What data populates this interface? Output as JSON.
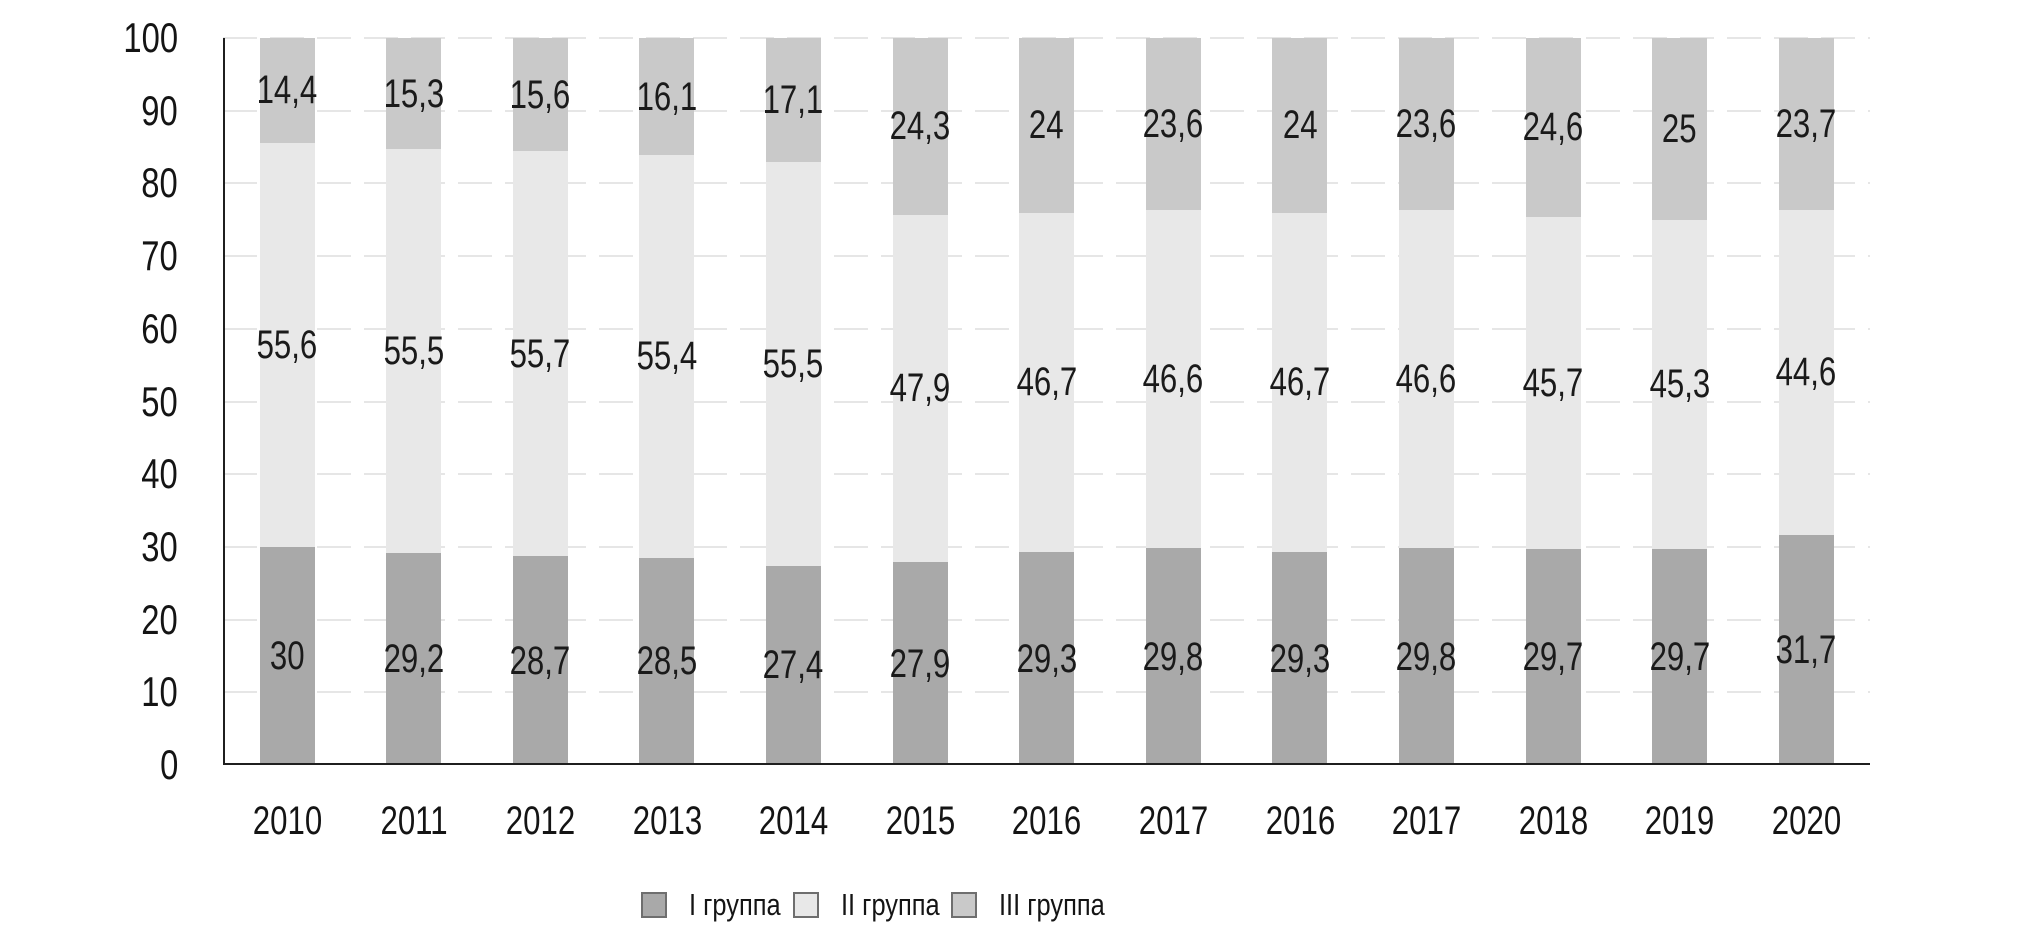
{
  "chart_data": {
    "type": "bar",
    "variant": "stacked-column",
    "title": "",
    "categories": [
      "2010",
      "2011",
      "2012",
      "2013",
      "2014",
      "2015",
      "2016",
      "2017",
      "2016",
      "2017",
      "2018",
      "2019",
      "2020"
    ],
    "series": [
      {
        "name": "I группа",
        "color": "#a9a9a9",
        "values": [
          30,
          29.2,
          28.7,
          28.5,
          27.4,
          27.9,
          29.3,
          29.8,
          29.3,
          29.8,
          29.7,
          29.7,
          31.7
        ],
        "labels": [
          "30",
          "29,2",
          "28,7",
          "28,5",
          "27,4",
          "27,9",
          "29,3",
          "29,8",
          "29,3",
          "29,8",
          "29,7",
          "29,7",
          "31,7"
        ]
      },
      {
        "name": "II группа",
        "color": "#e8e8e8",
        "values": [
          55.6,
          55.5,
          55.7,
          55.4,
          55.5,
          47.9,
          46.7,
          46.6,
          46.7,
          46.6,
          45.7,
          45.3,
          44.6
        ],
        "labels": [
          "55,6",
          "55,5",
          "55,7",
          "55,4",
          "55,5",
          "47,9",
          "46,7",
          "46,6",
          "46,7",
          "46,6",
          "45,7",
          "45,3",
          "44,6"
        ]
      },
      {
        "name": "III группа",
        "color": "#c9c9c9",
        "values": [
          14.4,
          15.3,
          15.6,
          16.1,
          17.1,
          24.3,
          24,
          23.6,
          24,
          23.6,
          24.6,
          25,
          23.7
        ],
        "labels": [
          "14,4",
          "15,3",
          "15,6",
          "16,1",
          "17,1",
          "24,3",
          "24",
          "23,6",
          "24",
          "23,6",
          "24,6",
          "25",
          "23,7"
        ]
      }
    ],
    "y_axis": {
      "min": 0,
      "max": 100,
      "tick_step": 10,
      "tick_labels": [
        "0",
        "10",
        "20",
        "30",
        "40",
        "50",
        "60",
        "70",
        "80",
        "90",
        "100"
      ]
    },
    "grid": true,
    "legend": {
      "position": "bottom",
      "items": [
        {
          "label": "I группа",
          "swatch_color": "#a9a9a9"
        },
        {
          "label": "II группа",
          "swatch_color": "#e8e8e8"
        },
        {
          "label": "III группа",
          "swatch_color": "#c9c9c9"
        }
      ]
    },
    "colors": {
      "axis": "#1f1f1f",
      "gridline": "#e6e6e6",
      "label_text": "#1a1a1a",
      "background": "#ffffff"
    }
  }
}
